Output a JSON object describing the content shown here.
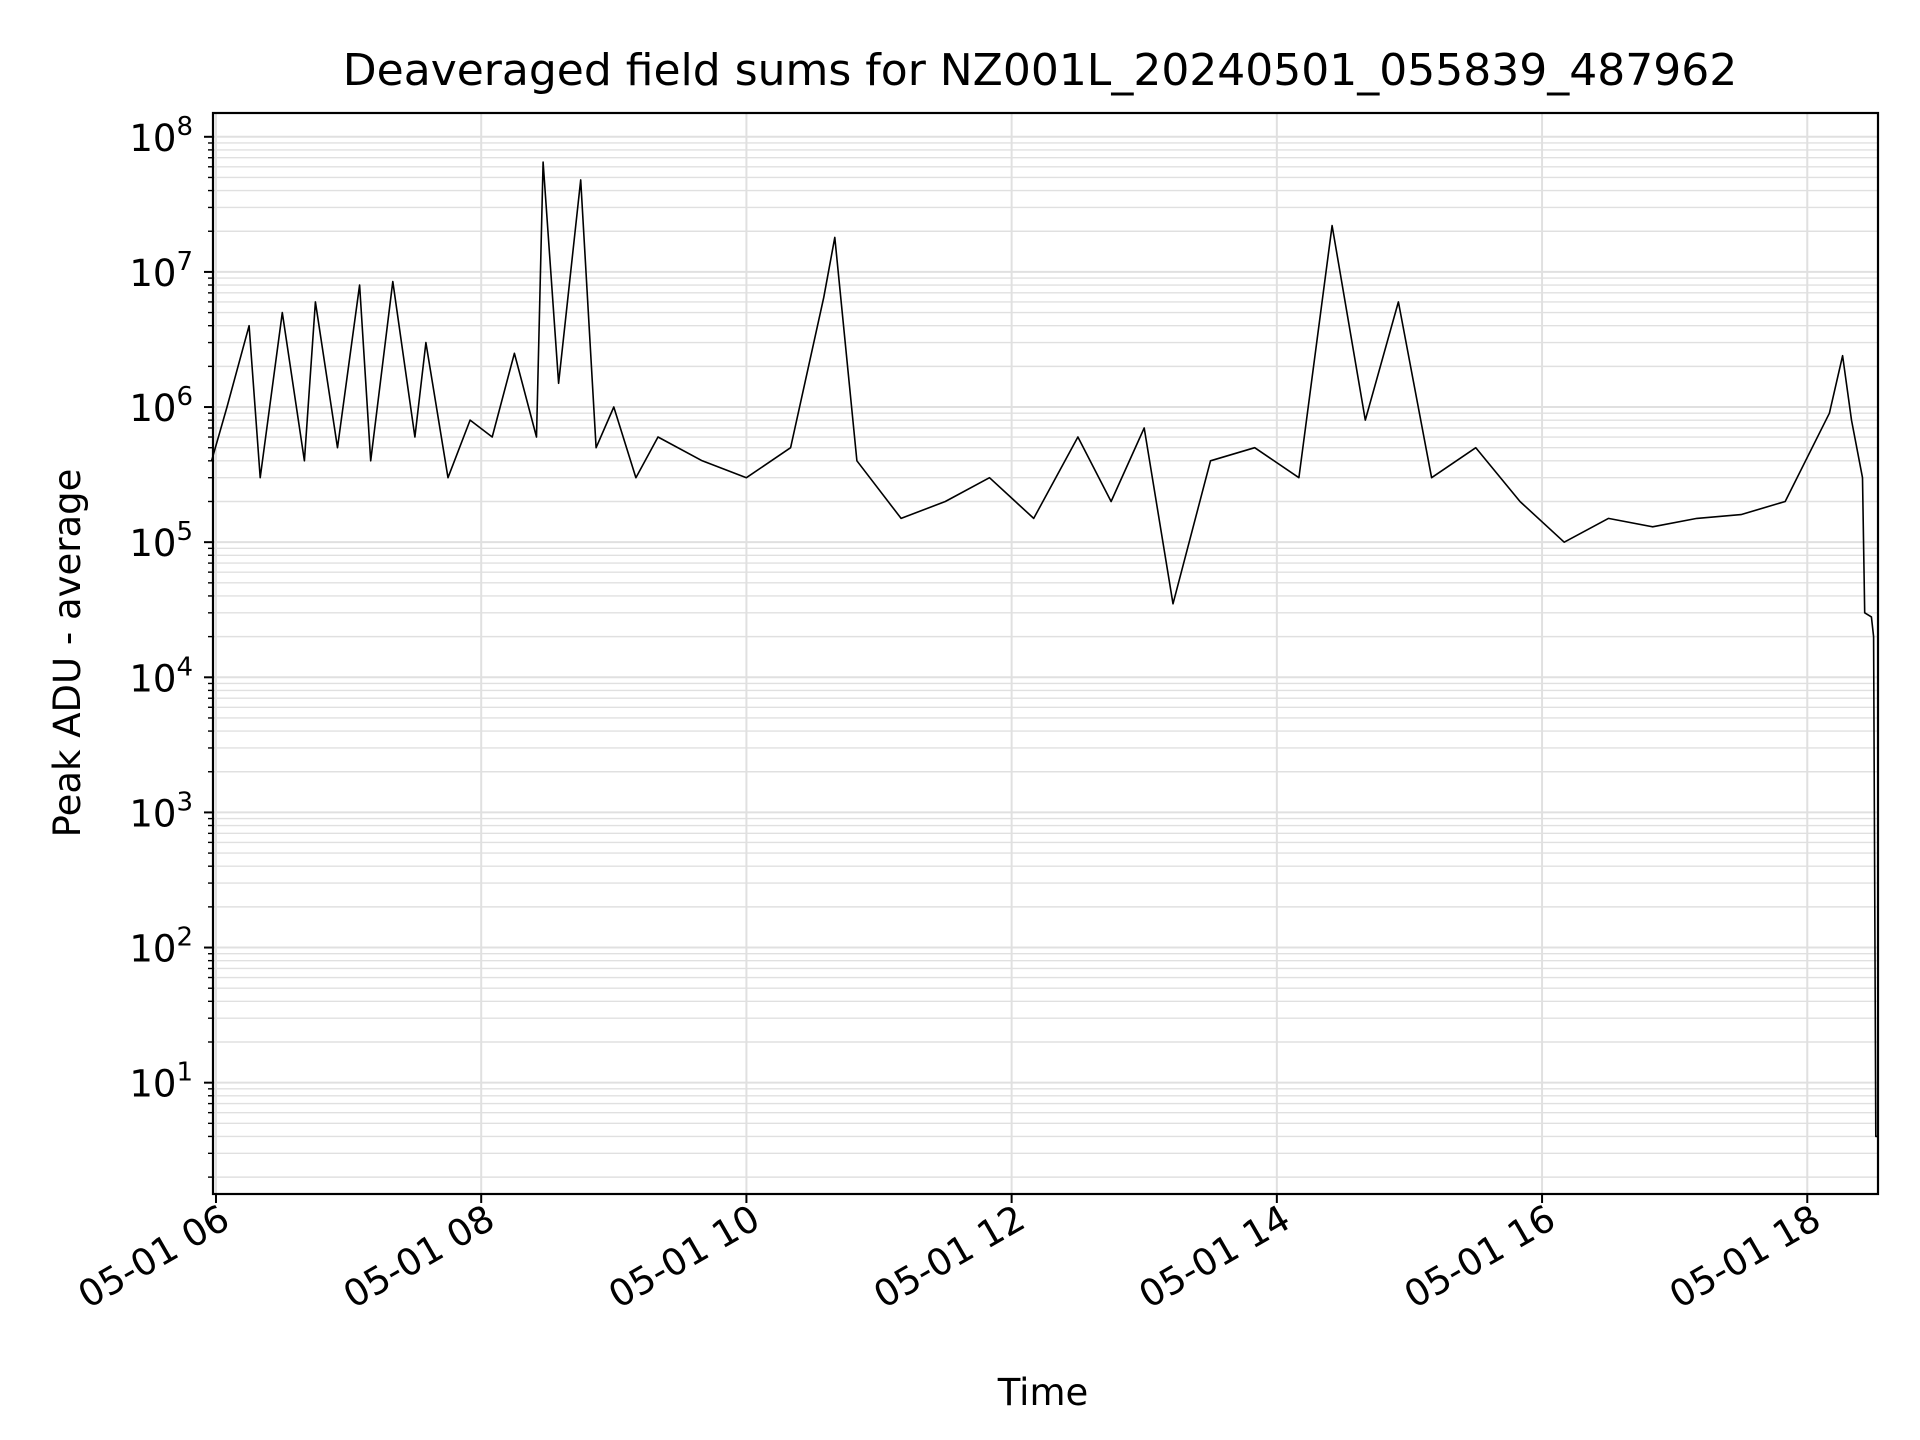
{
  "chart_data": {
    "type": "line",
    "title": "Deaveraged field sums for NZ001L_20240501_055839_487962",
    "xlabel": "Time",
    "ylabel": "Peak ADU - average",
    "yscale": "log",
    "xlim": [
      "2024-05-01 05:58:39",
      "2024-05-01 18:32:00"
    ],
    "ylim": [
      1.5,
      150000000
    ],
    "grid": true,
    "line_color": "#000000",
    "grid_color": "#e0e0e0",
    "x_ticks": [
      {
        "value": "2024-05-01 06:00",
        "label": "05-01 06"
      },
      {
        "value": "2024-05-01 08:00",
        "label": "05-01 08"
      },
      {
        "value": "2024-05-01 10:00",
        "label": "05-01 10"
      },
      {
        "value": "2024-05-01 12:00",
        "label": "05-01 12"
      },
      {
        "value": "2024-05-01 14:00",
        "label": "05-01 14"
      },
      {
        "value": "2024-05-01 16:00",
        "label": "05-01 16"
      },
      {
        "value": "2024-05-01 18:00",
        "label": "05-01 18"
      }
    ],
    "y_ticks": [
      {
        "value": 10,
        "base": "10",
        "exp": "1"
      },
      {
        "value": 100,
        "base": "10",
        "exp": "2"
      },
      {
        "value": 1000,
        "base": "10",
        "exp": "3"
      },
      {
        "value": 10000,
        "base": "10",
        "exp": "4"
      },
      {
        "value": 100000,
        "base": "10",
        "exp": "5"
      },
      {
        "value": 1000000,
        "base": "10",
        "exp": "6"
      },
      {
        "value": 10000000,
        "base": "10",
        "exp": "7"
      },
      {
        "value": 100000000,
        "base": "10",
        "exp": "8"
      }
    ],
    "series": [
      {
        "x": [
          "2024-05-01 05:58",
          "2024-05-01 06:05",
          "2024-05-01 06:15",
          "2024-05-01 06:20",
          "2024-05-01 06:30",
          "2024-05-01 06:40",
          "2024-05-01 06:45",
          "2024-05-01 06:55",
          "2024-05-01 07:05",
          "2024-05-01 07:10",
          "2024-05-01 07:20",
          "2024-05-01 07:30",
          "2024-05-01 07:35",
          "2024-05-01 07:45",
          "2024-05-01 07:55",
          "2024-05-01 08:05",
          "2024-05-01 08:15",
          "2024-05-01 08:25",
          "2024-05-01 08:28",
          "2024-05-01 08:35",
          "2024-05-01 08:45",
          "2024-05-01 08:52",
          "2024-05-01 09:00",
          "2024-05-01 09:10",
          "2024-05-01 09:20",
          "2024-05-01 09:40",
          "2024-05-01 10:00",
          "2024-05-01 10:20",
          "2024-05-01 10:35",
          "2024-05-01 10:40",
          "2024-05-01 10:50",
          "2024-05-01 11:10",
          "2024-05-01 11:30",
          "2024-05-01 11:50",
          "2024-05-01 12:10",
          "2024-05-01 12:30",
          "2024-05-01 12:45",
          "2024-05-01 13:00",
          "2024-05-01 13:13",
          "2024-05-01 13:30",
          "2024-05-01 13:50",
          "2024-05-01 14:10",
          "2024-05-01 14:25",
          "2024-05-01 14:40",
          "2024-05-01 14:55",
          "2024-05-01 15:10",
          "2024-05-01 15:30",
          "2024-05-01 15:50",
          "2024-05-01 16:10",
          "2024-05-01 16:30",
          "2024-05-01 16:50",
          "2024-05-01 17:10",
          "2024-05-01 17:30",
          "2024-05-01 17:50",
          "2024-05-01 18:10",
          "2024-05-01 18:16",
          "2024-05-01 18:20",
          "2024-05-01 18:25",
          "2024-05-01 18:26",
          "2024-05-01 18:29",
          "2024-05-01 18:30",
          "2024-05-01 18:31",
          "2024-05-01 18:32"
        ],
        "y": [
          400000,
          1000000,
          4000000,
          300000,
          5000000,
          400000,
          6000000,
          500000,
          8000000,
          400000,
          8500000,
          600000,
          3000000,
          300000,
          800000,
          600000,
          2500000,
          600000,
          65000000,
          1500000,
          48000000,
          500000,
          1000000,
          300000,
          600000,
          400000,
          300000,
          500000,
          6500000,
          18000000,
          400000,
          150000,
          200000,
          300000,
          150000,
          600000,
          200000,
          700000,
          35000,
          400000,
          500000,
          300000,
          22000000,
          800000,
          6000000,
          300000,
          500000,
          200000,
          100000,
          150000,
          130000,
          150000,
          160000,
          200000,
          900000,
          2400000,
          800000,
          300000,
          30000,
          28000,
          20000,
          4,
          4
        ]
      }
    ]
  }
}
